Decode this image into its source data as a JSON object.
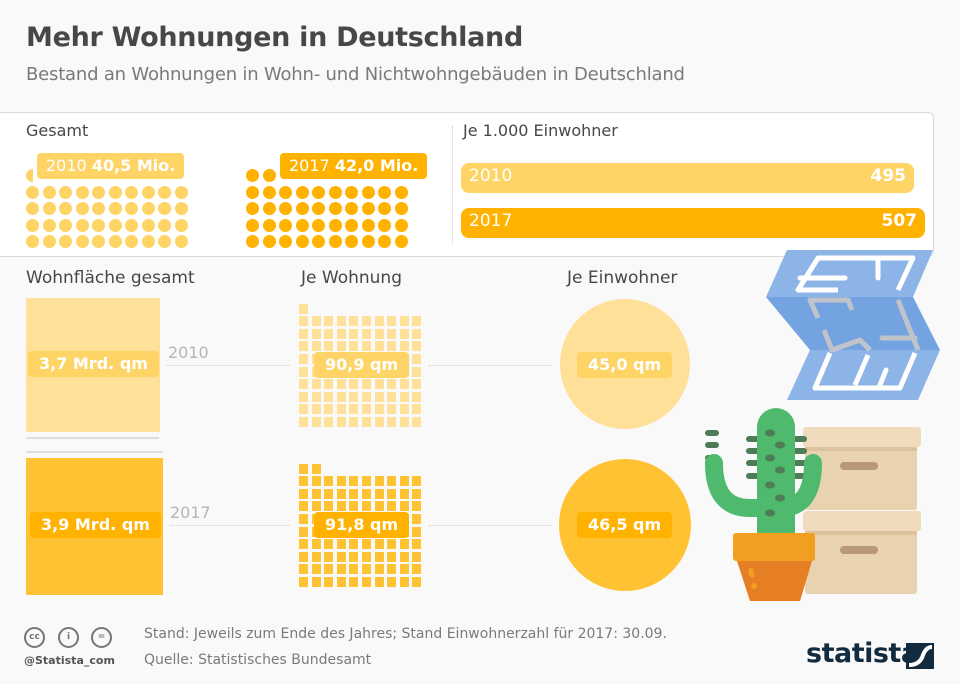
{
  "header": {
    "title": "Mehr Wohnungen in Deutschland",
    "subtitle": "Bestand an Wohnungen in Wohn- und Nichtwohngebäuden in Deutschland"
  },
  "colors": {
    "light_yellow": "#ffd466",
    "pale_yellow": "#ffe099",
    "orange": "#ffb200",
    "mid_orange": "#ffc233",
    "text_dark": "#474747",
    "text_grey": "#7a7a7a"
  },
  "chart_data": [
    {
      "type": "pictogram",
      "title": "Gesamt",
      "unit": "Mio. Wohnungen",
      "series": [
        {
          "year": "2010",
          "value": 40.5,
          "label_year": "2010",
          "label_value": "40,5 Mio."
        },
        {
          "year": "2017",
          "value": 42.0,
          "label_year": "2017",
          "label_value": "42,0 Mio."
        }
      ]
    },
    {
      "type": "bar",
      "title": "Je 1.000 Einwohner",
      "categories": [
        "2010",
        "2017"
      ],
      "values": [
        495,
        507
      ]
    },
    {
      "type": "area-squares",
      "title": "Wohnfläche gesamt",
      "categories": [
        "2010",
        "2017"
      ],
      "values": [
        3.7,
        3.9
      ],
      "labels": [
        "3,7 Mrd. qm",
        "3,9 Mrd. qm"
      ],
      "unit": "Mrd. qm"
    },
    {
      "type": "pictogram",
      "title": "Je Wohnung",
      "categories": [
        "2010",
        "2017"
      ],
      "values": [
        90.9,
        91.8
      ],
      "labels": [
        "90,9 qm",
        "91,8 qm"
      ],
      "unit": "qm"
    },
    {
      "type": "bubble",
      "title": "Je Einwohner",
      "categories": [
        "2010",
        "2017"
      ],
      "values": [
        45.0,
        46.5
      ],
      "labels": [
        "45,0 qm",
        "46,5 qm"
      ],
      "unit": "qm"
    }
  ],
  "sections": {
    "gesamt": "Gesamt",
    "je1000": "Je 1.000 Einwohner",
    "wohnflaeche": "Wohnfläche gesamt",
    "je_wohnung": "Je Wohnung",
    "je_einwohner": "Je Einwohner"
  },
  "years": [
    "2010",
    "2017"
  ],
  "footer": {
    "note": "Stand: Jeweils zum Ende des Jahres; Stand Einwohnerzahl für 2017: 30.09.",
    "source": "Quelle: Statistisches Bundesamt",
    "handle": "@Statista_com",
    "logo": "statista",
    "license_icons": [
      "cc",
      "i",
      "="
    ]
  }
}
